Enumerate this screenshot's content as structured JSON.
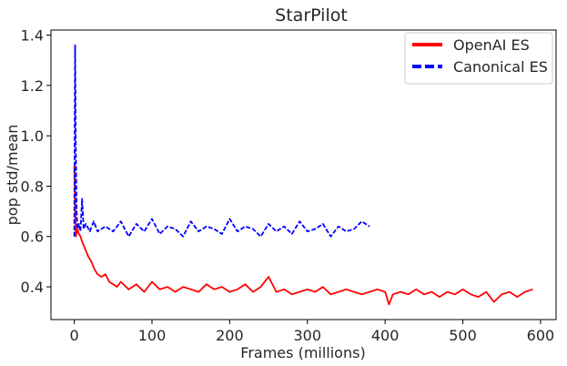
{
  "chart_data": {
    "type": "line",
    "title": "StarPilot",
    "xlabel": "Frames (millions)",
    "ylabel": "pop std/mean",
    "xlim": [
      -30,
      620
    ],
    "ylim": [
      0.27,
      1.42
    ],
    "xticks": [
      0,
      100,
      200,
      300,
      400,
      500,
      600
    ],
    "yticks": [
      0.4,
      0.6,
      0.8,
      1.0,
      1.2,
      1.4
    ],
    "xtick_labels": [
      "0",
      "100",
      "200",
      "300",
      "400",
      "500",
      "600"
    ],
    "ytick_labels": [
      "0.4",
      "0.6",
      "0.8",
      "1.0",
      "1.2",
      "1.4"
    ],
    "grid": false,
    "legend_position": "top-right",
    "series": [
      {
        "name": "OpenAI ES",
        "color": "#ff0000",
        "style": "solid",
        "x": [
          0,
          2,
          4,
          6,
          8,
          10,
          14,
          18,
          22,
          26,
          30,
          35,
          40,
          45,
          50,
          55,
          60,
          70,
          80,
          90,
          100,
          110,
          120,
          130,
          140,
          150,
          160,
          170,
          180,
          190,
          200,
          210,
          220,
          230,
          240,
          250,
          260,
          270,
          280,
          290,
          300,
          310,
          320,
          330,
          340,
          350,
          360,
          370,
          380,
          390,
          400,
          405,
          410,
          420,
          430,
          440,
          450,
          460,
          470,
          480,
          490,
          500,
          510,
          520,
          530,
          540,
          550,
          560,
          570,
          580,
          590
        ],
        "y": [
          0.88,
          0.6,
          0.63,
          0.61,
          0.6,
          0.58,
          0.55,
          0.52,
          0.5,
          0.47,
          0.45,
          0.44,
          0.45,
          0.42,
          0.41,
          0.4,
          0.42,
          0.39,
          0.41,
          0.38,
          0.42,
          0.39,
          0.4,
          0.38,
          0.4,
          0.39,
          0.38,
          0.41,
          0.39,
          0.4,
          0.38,
          0.39,
          0.41,
          0.38,
          0.4,
          0.44,
          0.38,
          0.39,
          0.37,
          0.38,
          0.39,
          0.38,
          0.4,
          0.37,
          0.38,
          0.39,
          0.38,
          0.37,
          0.38,
          0.39,
          0.38,
          0.33,
          0.37,
          0.38,
          0.37,
          0.39,
          0.37,
          0.38,
          0.36,
          0.38,
          0.37,
          0.39,
          0.37,
          0.36,
          0.38,
          0.34,
          0.37,
          0.38,
          0.36,
          0.38,
          0.39
        ]
      },
      {
        "name": "Canonical ES",
        "color": "#0000ff",
        "style": "dashed",
        "x": [
          0,
          1,
          2,
          3,
          4,
          6,
          8,
          10,
          12,
          15,
          20,
          25,
          30,
          40,
          50,
          60,
          70,
          80,
          90,
          100,
          110,
          120,
          130,
          140,
          150,
          160,
          170,
          180,
          190,
          200,
          210,
          220,
          230,
          240,
          250,
          260,
          270,
          280,
          290,
          300,
          310,
          320,
          330,
          340,
          350,
          360,
          370,
          380
        ],
        "y": [
          0.6,
          1.36,
          0.95,
          0.7,
          0.63,
          0.65,
          0.62,
          0.75,
          0.63,
          0.65,
          0.62,
          0.66,
          0.62,
          0.64,
          0.62,
          0.66,
          0.6,
          0.65,
          0.62,
          0.67,
          0.61,
          0.64,
          0.63,
          0.6,
          0.66,
          0.62,
          0.64,
          0.63,
          0.61,
          0.67,
          0.62,
          0.64,
          0.63,
          0.6,
          0.65,
          0.62,
          0.64,
          0.61,
          0.66,
          0.62,
          0.63,
          0.65,
          0.6,
          0.64,
          0.62,
          0.63,
          0.66,
          0.64
        ]
      }
    ]
  }
}
